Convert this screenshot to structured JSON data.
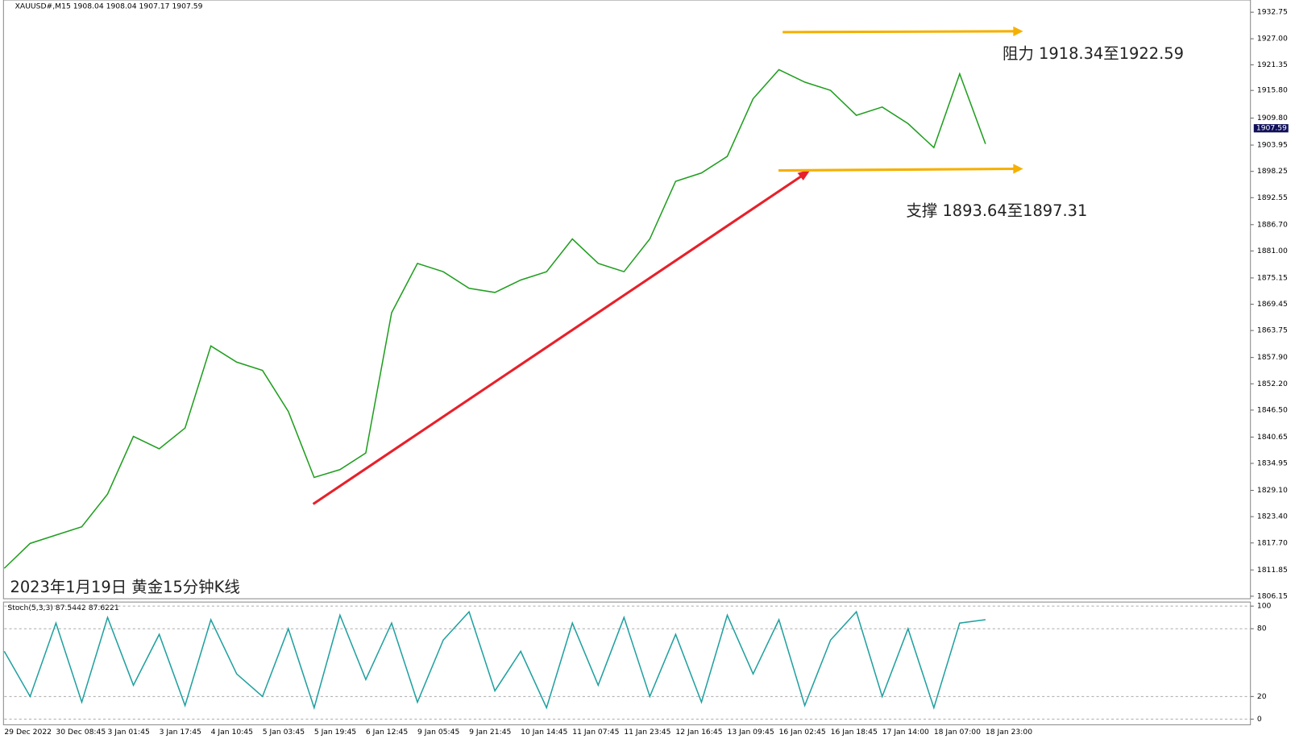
{
  "chart_data": [
    {
      "type": "line",
      "title": "XAUUSD#,M15  1908.04 1908.04 1907.17 1907.59",
      "annotations": [
        "阻力 1918.34至1922.59",
        "支撑 1893.64至1897.31",
        "2023年1月19日 黄金15分钟K线"
      ],
      "last_price": 1907.59,
      "categories": [
        "29 Dec 2022",
        null,
        "30 Dec 08:45",
        null,
        "3 Jan 01:45",
        null,
        "3 Jan 17:45",
        null,
        "4 Jan 10:45",
        null,
        "5 Jan 03:45",
        null,
        "5 Jan 19:45",
        null,
        "6 Jan 12:45",
        null,
        "9 Jan 05:45",
        null,
        "9 Jan 21:45",
        null,
        "10 Jan 14:45",
        null,
        "11 Jan 07:45",
        null,
        "11 Jan 23:45",
        null,
        "12 Jan 16:45",
        null,
        "13 Jan 09:45",
        null,
        "16 Jan 02:45",
        null,
        "16 Jan 18:45",
        null,
        "17 Jan 14:00",
        null,
        "18 Jan 07:00",
        null,
        "18 Jan 23:00"
      ],
      "values": [
        1812.2,
        1817.6,
        1819.4,
        1821.2,
        1828.3,
        1840.8,
        1838.1,
        1842.6,
        1860.4,
        1856.9,
        1855.1,
        1846.2,
        1831.9,
        1833.6,
        1837.2,
        1867.6,
        1878.3,
        1876.5,
        1872.9,
        1872.0,
        1874.7,
        1876.5,
        1883.6,
        1878.3,
        1876.5,
        1883.6,
        1896.1,
        1897.9,
        1901.5,
        1914.0,
        1920.3,
        1917.6,
        1915.8,
        1910.4,
        1912.2,
        1908.6,
        1903.4,
        1919.4,
        1904.2
      ],
      "color": "#1f9e1f",
      "ylim": [
        1805.6,
        1935.4
      ],
      "yticks": [
        1932.75,
        {
          "value": 1927.0,
          "label": "1927.00"
        },
        1921.35,
        {
          "value": 1915.8,
          "label": "1915.80"
        },
        {
          "value": 1909.8,
          "label": "1909.80"
        },
        1903.95,
        1898.25,
        1892.55,
        {
          "value": 1886.7,
          "label": "1886.70"
        },
        {
          "value": 1881.0,
          "label": "1881.00"
        },
        1875.15,
        1869.45,
        1863.75,
        {
          "value": 1857.9,
          "label": "1857.90"
        },
        {
          "value": 1852.2,
          "label": "1852.20"
        },
        {
          "value": 1846.5,
          "label": "1846.50"
        },
        1840.65,
        1834.95,
        {
          "value": 1829.1,
          "label": "1829.10"
        },
        {
          "value": 1823.4,
          "label": "1823.40"
        },
        {
          "value": 1817.7,
          "label": "1817.70"
        },
        1811.85,
        1806.15
      ],
      "grid": false
    },
    {
      "type": "line",
      "title": "Stoch(5,3,3) 87.5442 87.6221",
      "values": [
        60,
        20,
        85,
        15,
        90,
        30,
        75,
        12,
        88,
        40,
        20,
        80,
        10,
        92,
        35,
        85,
        15,
        70,
        95,
        25,
        60,
        10,
        85,
        30,
        90,
        20,
        75,
        15,
        92,
        40,
        88,
        12,
        70,
        95,
        20,
        80,
        10,
        85,
        88
      ],
      "color": "#20a0a0",
      "ylim": [
        -5,
        103.6
      ],
      "yticks": [
        0,
        20,
        80,
        100
      ],
      "grid": true
    }
  ]
}
